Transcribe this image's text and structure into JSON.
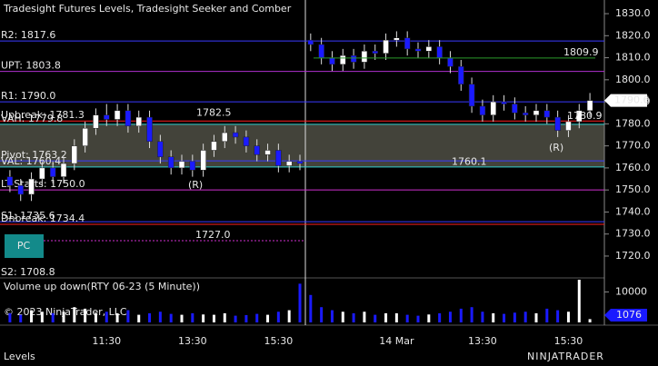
{
  "chart_data": {
    "type": "candlestick",
    "title": "Tradesight Futures Levels, Tradesight Seeker and Comber",
    "categories": [
      null,
      null,
      null,
      null,
      null,
      null,
      null,
      null,
      null,
      "11:30",
      null,
      null,
      null,
      null,
      null,
      null,
      null,
      "13:30",
      null,
      null,
      null,
      null,
      null,
      null,
      null,
      "15:30",
      null,
      null,
      null,
      null,
      null,
      null,
      null,
      null,
      null,
      null,
      "14 Mar",
      null,
      null,
      null,
      null,
      null,
      null,
      null,
      "13:30",
      null,
      null,
      null,
      null,
      null,
      null,
      null,
      "15:30",
      null,
      null
    ],
    "open": [
      1756,
      1752,
      1748,
      1755,
      1760,
      1756,
      1762,
      1770,
      1778,
      1784,
      1782,
      1786,
      1779,
      1783,
      1772,
      1765,
      1760,
      1763,
      1759,
      1768,
      1772,
      1776,
      1774,
      1770,
      1766,
      1768,
      1761,
      1763,
      1818,
      1816,
      1810,
      1807,
      1811,
      1808,
      1813,
      1812,
      1818,
      1819,
      1814,
      1813,
      1815,
      1810,
      1806,
      1798,
      1788,
      1784,
      1790,
      1789,
      1785,
      1784,
      1786,
      1783,
      1777,
      1781,
      1786
    ],
    "high": [
      1759,
      1755,
      1758,
      1763,
      1763,
      1765,
      1773,
      1781,
      1787,
      1789,
      1789,
      1789,
      1786,
      1786,
      1775,
      1768,
      1766,
      1766,
      1771,
      1775,
      1779,
      1779,
      1777,
      1773,
      1771,
      1771,
      1766,
      1766,
      1821,
      1819,
      1813,
      1814,
      1814,
      1816,
      1816,
      1821,
      1822,
      1822,
      1817,
      1818,
      1818,
      1813,
      1809,
      1801,
      1791,
      1793,
      1793,
      1792,
      1788,
      1789,
      1789,
      1786,
      1784,
      1789,
      1794
    ],
    "low": [
      1749,
      1745,
      1745,
      1752,
      1753,
      1753,
      1759,
      1767,
      1775,
      1779,
      1779,
      1776,
      1776,
      1769,
      1762,
      1757,
      1757,
      1756,
      1756,
      1765,
      1769,
      1771,
      1767,
      1763,
      1763,
      1758,
      1758,
      1759,
      1813,
      1807,
      1804,
      1804,
      1805,
      1805,
      1809,
      1809,
      1815,
      1811,
      1810,
      1810,
      1807,
      1803,
      1795,
      1785,
      1781,
      1781,
      1786,
      1782,
      1781,
      1781,
      1780,
      1774,
      1774,
      1778,
      1783
    ],
    "close": [
      1752,
      1748,
      1755,
      1760,
      1756,
      1762,
      1770,
      1778,
      1784,
      1782,
      1786,
      1779,
      1783,
      1772,
      1765,
      1760,
      1763,
      1759,
      1768,
      1772,
      1776,
      1774,
      1770,
      1766,
      1768,
      1761,
      1763,
      1762,
      1816,
      1810,
      1807,
      1811,
      1808,
      1813,
      1812,
      1818,
      1819,
      1814,
      1813,
      1815,
      1810,
      1806,
      1798,
      1788,
      1784,
      1790,
      1789,
      1785,
      1784,
      1786,
      1783,
      1777,
      1781,
      1786,
      1790.6
    ],
    "up_color": "#ffffff",
    "down_color": "#1a1aff",
    "ylim": [
      1710.5,
      1836.2
    ],
    "yticks": [
      {
        "value": 1720,
        "label": "1720.0"
      },
      {
        "value": 1730,
        "label": "1730.0"
      },
      {
        "value": 1740,
        "label": "1740.0"
      },
      {
        "value": 1750,
        "label": "1750.0"
      },
      {
        "value": 1760,
        "label": "1760.0"
      },
      {
        "value": 1770,
        "label": "1770.0"
      },
      {
        "value": 1780,
        "label": "1780.0"
      },
      {
        "value": 1790,
        "label": "1790.0"
      },
      {
        "value": 1800,
        "label": "1800.0"
      },
      {
        "value": 1810,
        "label": "1810.0"
      },
      {
        "value": 1820,
        "label": "1820.0"
      },
      {
        "value": 1830,
        "label": "1830.0"
      }
    ],
    "levels": [
      {
        "label": "R2: 1817.6",
        "value": 1817.6,
        "color": "#3a3aff"
      },
      {
        "label": "UPT: 1803.8",
        "value": 1803.8,
        "color": "#b030d0"
      },
      {
        "label": "R1: 1790.0",
        "value": 1790.0,
        "color": "#3a3aff"
      },
      {
        "label": "Upbreak: 1781.3",
        "value": 1781.3,
        "color": "#ff2020"
      },
      {
        "label": "VAH: 1779.8",
        "value": 1779.8,
        "color": "#30d0d0"
      },
      {
        "label": "Pivot: 1763.2",
        "value": 1763.2,
        "color": "#3a3aff"
      },
      {
        "label": "VAL: 1760.4",
        "value": 1760.4,
        "color": "#30d0d0"
      },
      {
        "label": "LT-Starts: 1750.0",
        "value": 1750.0,
        "color": "#d030d0"
      },
      {
        "label": "S1: 1735.6",
        "value": 1735.6,
        "color": "#3a3aff"
      },
      {
        "label": "Dnbreak: 1734.4",
        "value": 1734.4,
        "color": "#ff2020"
      },
      {
        "label": "S2: 1708.8",
        "value": 1708.8,
        "color": "#3a3aff"
      }
    ],
    "annotations": [
      {
        "text": "1809.9",
        "value": 1809.9,
        "color": "#2a9a2a"
      },
      {
        "text": "1782.5",
        "value": 1782.5,
        "color": "#2a9a2a"
      },
      {
        "text": "1760.1",
        "value": 1760.1,
        "color": "#e02020"
      },
      {
        "text": "1780.9",
        "value": 1780.9,
        "color": "#e02020"
      },
      {
        "text": "1727.0",
        "value": 1727.0,
        "color": "#d030d0"
      }
    ],
    "markers": [
      "(R)",
      "(R)",
      "PC"
    ],
    "volume": {
      "title": "Volume up down(RTY 06-23 (5 Minute))",
      "values": [
        3000,
        2500,
        4000,
        3500,
        3000,
        3500,
        5000,
        4500,
        3000,
        3500,
        3000,
        4000,
        2500,
        3000,
        3500,
        2800,
        2500,
        3000,
        2600,
        2500,
        3000,
        2200,
        2400,
        2800,
        2500,
        3500,
        4000,
        12700,
        9000,
        5000,
        4000,
        3500,
        3000,
        3500,
        2500,
        3000,
        3000,
        2500,
        2200,
        2600,
        3000,
        3500,
        4500,
        5000,
        3500,
        3000,
        2800,
        3200,
        3500,
        3000,
        4500,
        4000,
        3500,
        14000,
        1076
      ],
      "ylim": [
        0,
        14000
      ],
      "yticks": [
        10000
      ]
    },
    "copyright": "© 2023 NinjaTrader, LLC",
    "tab": "Levels",
    "logo": "NINJATRADER"
  }
}
